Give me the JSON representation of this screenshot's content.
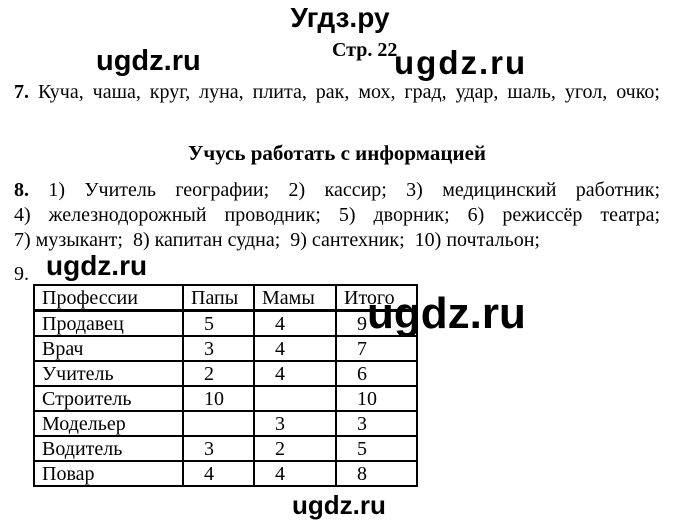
{
  "page": {
    "site_title": "Угдз.ру",
    "page_label": "Стр. 22",
    "watermark": "ugdz.ru"
  },
  "item7": {
    "number": "7.",
    "text": "Куча, чаша, круг, луна, плита, рак, мох, град, удар, шаль, угол, очко;"
  },
  "section_heading": "Учусь работать с информацией",
  "item8": {
    "number": "8.",
    "line1": "1) Учитель географии; 2) кассир; 3) медицинский работник;",
    "line2": "4) железнодорожный проводник; 5) дворник; 6) режиссёр театра;",
    "line3": "7) музыкант;  8) капитан судна;  9) сантехник;  10) почтальон;"
  },
  "item9": {
    "number": "9."
  },
  "table": {
    "headers": [
      "Профессии",
      "Папы",
      "Мамы",
      "Итого"
    ],
    "rows": [
      [
        "Продавец",
        "5",
        "4",
        "9"
      ],
      [
        "Врач",
        "3",
        "4",
        "7"
      ],
      [
        "Учитель",
        "2",
        "4",
        "6"
      ],
      [
        "Строитель",
        "10",
        "",
        "10"
      ],
      [
        "Модельер",
        "",
        "3",
        "3"
      ],
      [
        "Водитель",
        "3",
        "2",
        "5"
      ],
      [
        "Повар",
        "4",
        "4",
        "8"
      ]
    ]
  }
}
